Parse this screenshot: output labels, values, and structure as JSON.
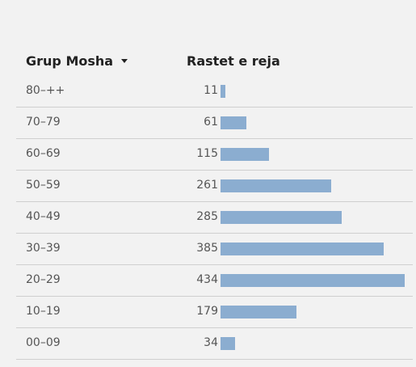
{
  "table": {
    "age_header": "Grup Mosha",
    "cases_header": "Rastet e reja",
    "bar_color": "#8badd0",
    "bar_max_value": 434,
    "rows": [
      {
        "age": "80–++",
        "cases": 11
      },
      {
        "age": "70–79",
        "cases": 61
      },
      {
        "age": "60–69",
        "cases": 115
      },
      {
        "age": "50–59",
        "cases": 261
      },
      {
        "age": "40–49",
        "cases": 285
      },
      {
        "age": "30–39",
        "cases": 385
      },
      {
        "age": "20–29",
        "cases": 434
      },
      {
        "age": "10–19",
        "cases": 179
      },
      {
        "age": "00–09",
        "cases": 34
      }
    ]
  }
}
